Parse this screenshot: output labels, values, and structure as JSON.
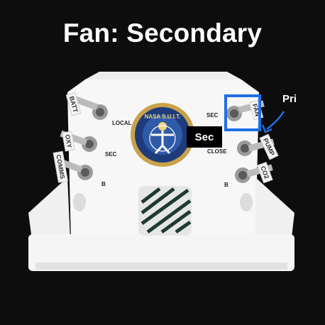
{
  "header": {
    "title": "Fan: Secondary"
  },
  "device": {
    "left_panel_labels": {
      "local": "LOCAL",
      "sec": "SEC",
      "b": "B"
    },
    "right_panel_labels": {
      "sec": "SEC",
      "close": "CLOSE",
      "b": "B"
    },
    "left_flags": {
      "batt": "BATT",
      "oxy": "OXY",
      "comms": "COMMS"
    },
    "right_flags": {
      "fan": "FAN",
      "pump": "PUMP",
      "co2": "CO2"
    },
    "patch_text": "NASA S.U.I.T."
  },
  "annotations": {
    "active_switch_label": "Sec",
    "primary_label": "Pri",
    "highlight_color": "#1f6fe6"
  }
}
